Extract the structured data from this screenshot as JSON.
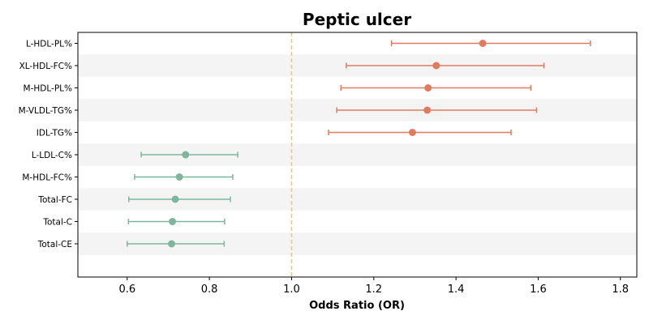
{
  "chart_data": {
    "type": "scatter",
    "title": "Peptic ulcer",
    "xlabel": "Odds Ratio (OR)",
    "ylabel": "",
    "xlim": [
      0.48,
      1.84
    ],
    "xticks": [
      0.6,
      0.8,
      1.0,
      1.2,
      1.4,
      1.6,
      1.8
    ],
    "xtick_labels": [
      "0.6",
      "0.8",
      "1.0",
      "1.2",
      "1.4",
      "1.6",
      "1.8"
    ],
    "reference_line": 1.0,
    "grid": false,
    "row_shading": true,
    "colors": {
      "risk": "#e07b61",
      "protective": "#7fb59c",
      "reference": "#f5c77e",
      "band": "#f4f4f4"
    },
    "categories": [
      "L-HDL-PL%",
      "XL-HDL-FC%",
      "M-HDL-PL%",
      "M-VLDL-TG%",
      "IDL-TG%",
      "L-LDL-C%",
      "M-HDL-FC%",
      "Total-FC",
      "Total-C",
      "Total-CE"
    ],
    "points": [
      {
        "label": "L-HDL-PL%",
        "or": 1.465,
        "lower": 1.243,
        "upper": 1.727,
        "group": "risk"
      },
      {
        "label": "XL-HDL-FC%",
        "or": 1.352,
        "lower": 1.133,
        "upper": 1.614,
        "group": "risk"
      },
      {
        "label": "M-HDL-PL%",
        "or": 1.332,
        "lower": 1.12,
        "upper": 1.582,
        "group": "risk"
      },
      {
        "label": "M-VLDL-TG%",
        "or": 1.33,
        "lower": 1.11,
        "upper": 1.596,
        "group": "risk"
      },
      {
        "label": "IDL-TG%",
        "or": 1.294,
        "lower": 1.09,
        "upper": 1.534,
        "group": "risk"
      },
      {
        "label": "L-LDL-C%",
        "or": 0.742,
        "lower": 0.634,
        "upper": 0.869,
        "group": "protective"
      },
      {
        "label": "M-HDL-FC%",
        "or": 0.727,
        "lower": 0.618,
        "upper": 0.857,
        "group": "protective"
      },
      {
        "label": "Total-FC",
        "or": 0.717,
        "lower": 0.604,
        "upper": 0.851,
        "group": "protective"
      },
      {
        "label": "Total-C",
        "or": 0.71,
        "lower": 0.603,
        "upper": 0.837,
        "group": "protective"
      },
      {
        "label": "Total-CE",
        "or": 0.708,
        "lower": 0.6,
        "upper": 0.836,
        "group": "protective"
      }
    ]
  }
}
